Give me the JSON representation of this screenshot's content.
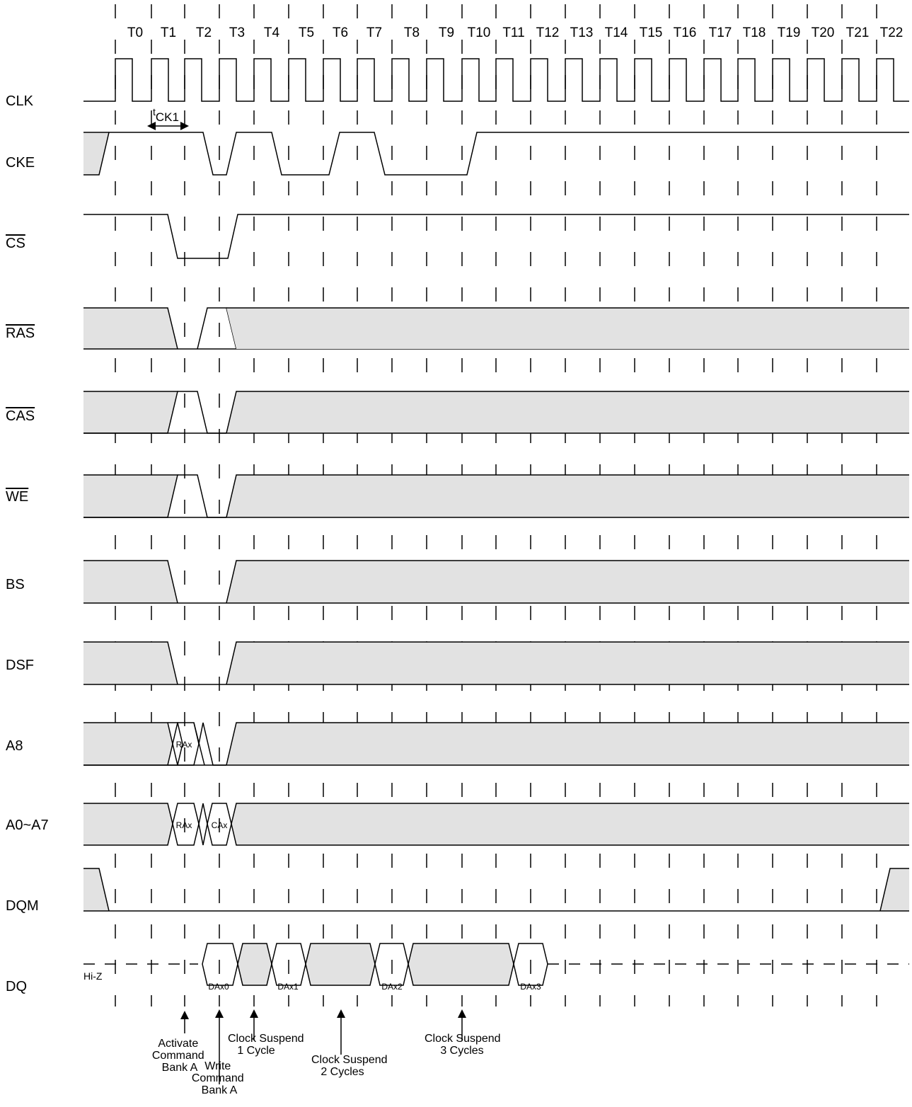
{
  "ticks": [
    "T0",
    "T1",
    "T2",
    "T3",
    "T4",
    "T5",
    "T6",
    "T7",
    "T8",
    "T9",
    "T10",
    "T11",
    "T12",
    "T13",
    "T14",
    "T15",
    "T16",
    "T17",
    "T18",
    "T19",
    "T20",
    "T21",
    "T22"
  ],
  "signals": {
    "clk": "CLK",
    "cke": "CKE",
    "cs": "CS",
    "ras": "RAS",
    "cas": "CAS",
    "we": "WE",
    "bs": "BS",
    "dsf": "DSF",
    "a8": "A8",
    "a0a7": "A0~A7",
    "dqm": "DQM",
    "dq": "DQ"
  },
  "timing": {
    "t": "t",
    "sub": "CK1"
  },
  "cells": {
    "a8_row": "RAx",
    "a0_row": "RAx",
    "a0_col": "CAx",
    "dq0": "DAx0",
    "dq1": "DAx1",
    "dq2": "DAx2",
    "dq3": "DAx3"
  },
  "hiz": "Hi-Z",
  "annotations": {
    "activate": [
      "Activate",
      "Command",
      "Bank A"
    ],
    "write": [
      "Write",
      "Command",
      "Bank A"
    ],
    "suspend1": [
      "Clock Suspend",
      "1 Cycle"
    ],
    "suspend2": [
      "Clock Suspend",
      "2 Cycles"
    ],
    "suspend3": [
      "Clock Suspend",
      "3 Cycles"
    ]
  },
  "colors": {
    "shade": "#e2e2e2",
    "line": "#000000"
  }
}
